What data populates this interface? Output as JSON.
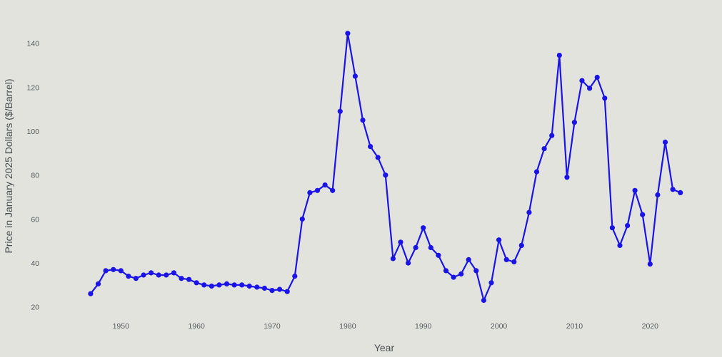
{
  "chart_data": {
    "type": "line",
    "title": "",
    "xlabel": "Year",
    "ylabel": "Price in January 2025 Dollars ($/Barrel)",
    "xlim": [
      1941,
      2028
    ],
    "ylim": [
      17,
      148
    ],
    "xticks": [
      1950,
      1960,
      1970,
      1980,
      1990,
      2000,
      2010,
      2020
    ],
    "yticks": [
      20,
      40,
      60,
      80,
      100,
      120,
      140
    ],
    "grid": false,
    "legend": "none",
    "series": [
      {
        "color": "#1a14e6",
        "x": [
          1946,
          1947,
          1948,
          1949,
          1950,
          1951,
          1952,
          1953,
          1954,
          1955,
          1956,
          1957,
          1958,
          1959,
          1960,
          1961,
          1962,
          1963,
          1964,
          1965,
          1966,
          1967,
          1968,
          1969,
          1970,
          1971,
          1972,
          1973,
          1974,
          1975,
          1976,
          1977,
          1978,
          1979,
          1980,
          1981,
          1982,
          1983,
          1984,
          1985,
          1986,
          1987,
          1988,
          1989,
          1990,
          1991,
          1992,
          1993,
          1994,
          1995,
          1996,
          1997,
          1998,
          1999,
          2000,
          2001,
          2002,
          2003,
          2004,
          2005,
          2006,
          2007,
          2008,
          2009,
          2010,
          2011,
          2012,
          2013,
          2014,
          2015,
          2016,
          2017,
          2018,
          2019,
          2020,
          2021,
          2022,
          2023,
          2024
        ],
        "y": [
          26,
          30.5,
          36.5,
          37,
          36.5,
          34,
          33,
          34.5,
          35.5,
          34.5,
          34.5,
          35.5,
          33,
          32.5,
          31,
          30,
          29.5,
          30,
          30.5,
          30,
          30,
          29.5,
          29,
          28.5,
          27.5,
          28,
          27,
          34,
          60,
          72,
          73,
          75.5,
          73,
          109,
          144.5,
          125,
          105,
          93,
          88,
          80,
          42,
          49.5,
          40,
          47,
          56,
          47,
          43.5,
          36.5,
          33.5,
          35,
          41.5,
          36.5,
          23,
          31,
          50.5,
          41.5,
          40.5,
          48,
          63,
          81.5,
          92,
          98,
          134.5,
          79,
          104,
          123,
          119.5,
          124.5,
          115,
          56,
          48,
          57,
          73,
          62,
          39.5,
          71,
          95,
          73.5,
          72
        ]
      }
    ],
    "colors": {
      "background": "#e3e3dd",
      "line": "#1a14e6",
      "text": "#55595f"
    }
  }
}
